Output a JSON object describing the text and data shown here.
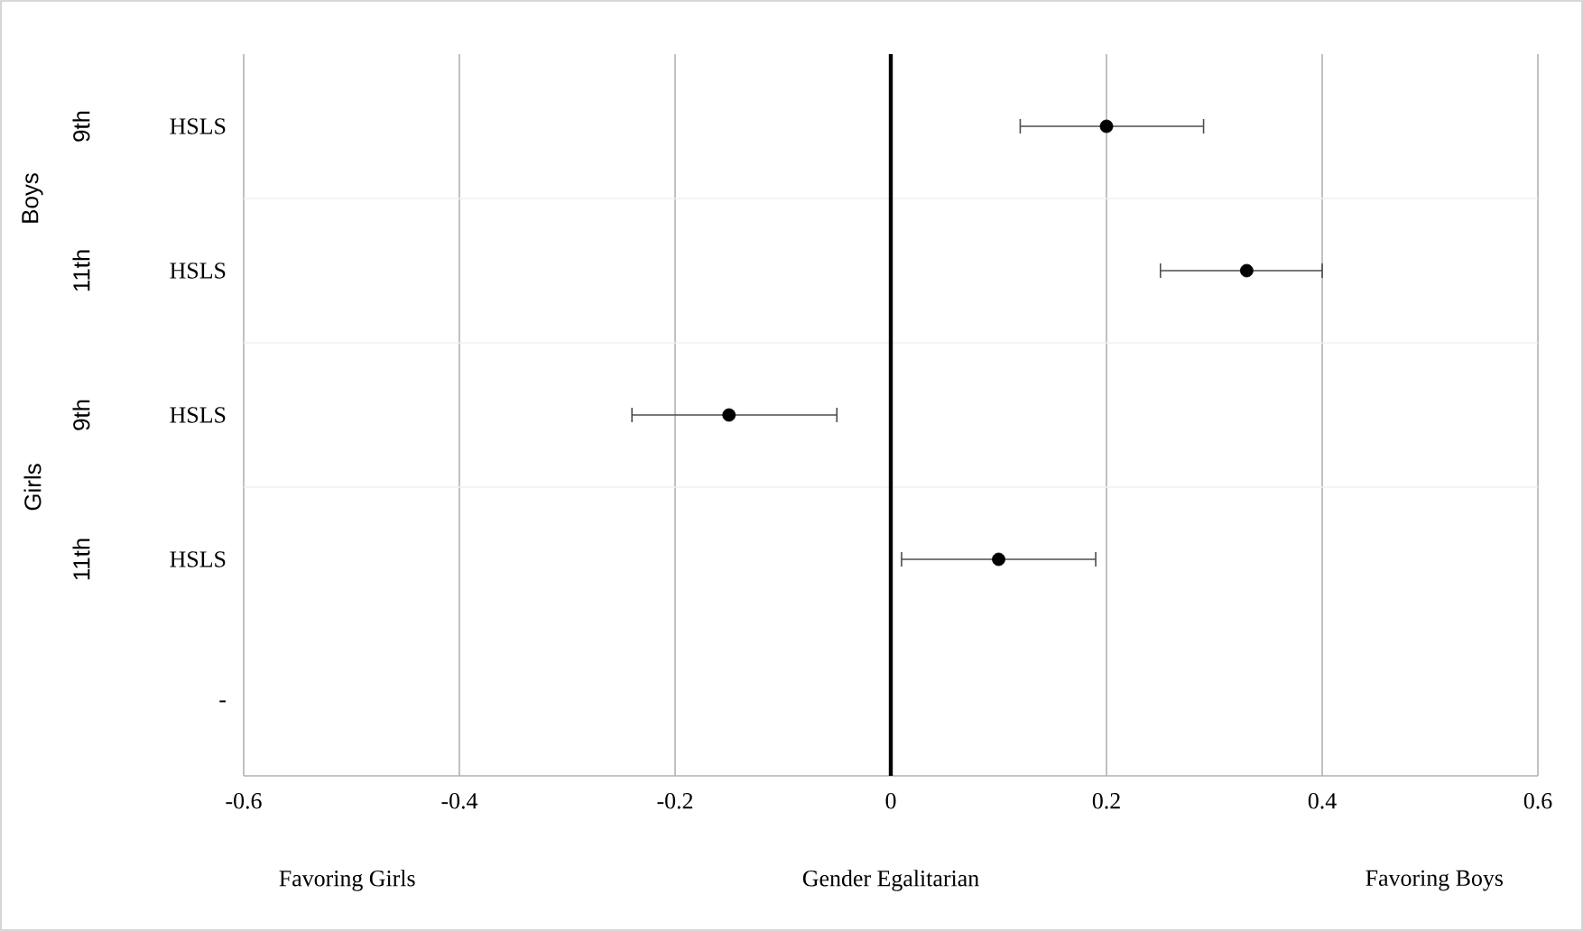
{
  "chart_data": {
    "type": "scatter",
    "orientation": "horizontal",
    "categories": [
      "HSLS",
      "HSLS",
      "HSLS",
      "HSLS",
      "-"
    ],
    "series": [
      {
        "color": "#000000",
        "values": [
          0.2,
          0.33,
          -0.15,
          0.1,
          null
        ],
        "errors": [
          [
            0.12,
            0.29
          ],
          [
            0.25,
            0.4
          ],
          [
            -0.24,
            -0.05
          ],
          [
            0.01,
            0.19
          ],
          null
        ]
      }
    ],
    "xlim": [
      -0.6,
      0.6
    ],
    "xticks": [
      -0.6,
      -0.4,
      -0.2,
      0,
      0.2,
      0.4,
      0.6
    ],
    "grid": "x",
    "marker": "circle",
    "ref_lines": [
      {
        "axis": "x",
        "value": 0,
        "color": "#000000"
      }
    ],
    "annotations": [
      "9th",
      "11th",
      "9th",
      "11th",
      "Boys",
      "Girls",
      "Favoring Girls",
      "Gender Egalitarian",
      "Favoring Boys"
    ]
  }
}
